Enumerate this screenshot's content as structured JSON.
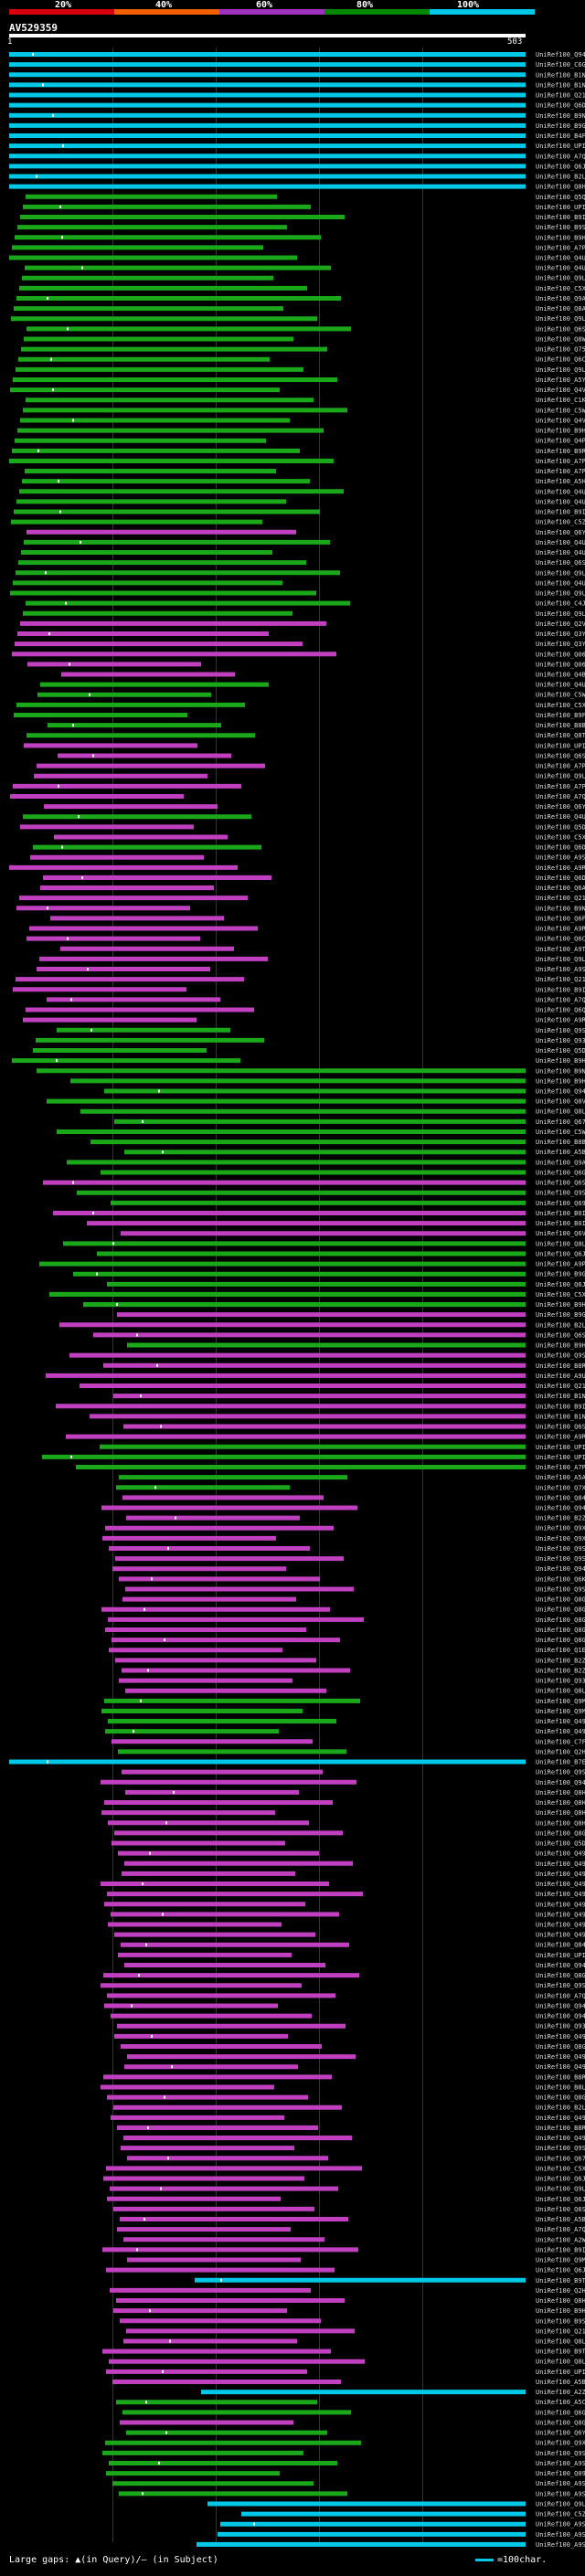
{
  "legend": {
    "percents": [
      "20%",
      "40%",
      "60%",
      "80%",
      "100%"
    ],
    "colors": [
      "#d8000c",
      "#f06000",
      "#a030c0",
      "#008800",
      "#00c8e6"
    ]
  },
  "query": {
    "id": "AV529359",
    "start": "1",
    "end": "503"
  },
  "hits": [
    {
      "id": "UniRef100_Q941L0",
      "color": "cyan"
    },
    {
      "id": "UniRef100_C6G908",
      "color": "cyan"
    },
    {
      "id": "UniRef100_B1NY19",
      "color": "cyan"
    },
    {
      "id": "UniRef100_B1NY16",
      "color": "cyan"
    },
    {
      "id": "UniRef100_Q21B40",
      "color": "cyan"
    },
    {
      "id": "UniRef100_Q6DU12",
      "color": "cyan"
    },
    {
      "id": "UniRef100_B9NMP9",
      "color": "cyan"
    },
    {
      "id": "UniRef100_B9GFE1",
      "color": "cyan"
    },
    {
      "id": "UniRef100_B4FUS7",
      "color": "cyan"
    },
    {
      "id": "UniRef100_UPI000...",
      "color": "cyan"
    },
    {
      "id": "UniRef100_A7QZN3",
      "color": "cyan"
    },
    {
      "id": "UniRef100_Q6JP46",
      "color": "cyan"
    },
    {
      "id": "UniRef100_B2LWM0",
      "color": "cyan"
    },
    {
      "id": "UniRef100_Q8H2Q6",
      "color": "cyan"
    },
    {
      "id": "UniRef100_Q5QEX6",
      "color": "green"
    },
    {
      "id": "UniRef100_UPI000...",
      "color": "green"
    },
    {
      "id": "UniRef100_B9I171",
      "color": "green"
    },
    {
      "id": "UniRef100_B9SUE6",
      "color": "green"
    },
    {
      "id": "UniRef100_B9HAW0",
      "color": "green"
    },
    {
      "id": "UniRef100_A7PWE3",
      "color": "green"
    },
    {
      "id": "UniRef100_Q4UXZ7",
      "color": "green"
    },
    {
      "id": "UniRef100_Q4UXZ5",
      "color": "green"
    },
    {
      "id": "UniRef100_Q9LL16",
      "color": "green"
    },
    {
      "id": "UniRef100_C5XSS3",
      "color": "green"
    },
    {
      "id": "UniRef100_Q9AVB8",
      "color": "green"
    },
    {
      "id": "UniRef100_Q8AZN6",
      "color": "green"
    },
    {
      "id": "UniRef100_Q9LLI1",
      "color": "green"
    },
    {
      "id": "UniRef100_Q6S353",
      "color": "green"
    },
    {
      "id": "UniRef100_Q8W4A3",
      "color": "green"
    },
    {
      "id": "UniRef100_Q75RZ1",
      "color": "green"
    },
    {
      "id": "UniRef100_Q6C354",
      "color": "green"
    },
    {
      "id": "UniRef100_Q9LL15",
      "color": "green"
    },
    {
      "id": "UniRef100_A5YJC4",
      "color": "green"
    },
    {
      "id": "UniRef100_Q4VWW6",
      "color": "green"
    },
    {
      "id": "UniRef100_C1KHI1",
      "color": "green"
    },
    {
      "id": "UniRef100_C5WA43",
      "color": "green"
    },
    {
      "id": "UniRef100_Q4VWW7",
      "color": "green"
    },
    {
      "id": "UniRef100_B9HN33",
      "color": "green"
    },
    {
      "id": "UniRef100_Q4PXB6",
      "color": "green"
    },
    {
      "id": "UniRef100_B9RP67",
      "color": "green"
    },
    {
      "id": "UniRef100_A7P11K",
      "color": "green"
    },
    {
      "id": "UniRef100_A7P5Q6",
      "color": "green"
    },
    {
      "id": "UniRef100_A5HY15",
      "color": "green"
    },
    {
      "id": "UniRef100_Q4U101",
      "color": "green"
    },
    {
      "id": "UniRef100_Q4U100",
      "color": "green"
    },
    {
      "id": "UniRef100_B9IKV7",
      "color": "green"
    },
    {
      "id": "UniRef100_C5Z153",
      "color": "green"
    },
    {
      "id": "UniRef100_Q6Y8V2",
      "color": "magenta"
    },
    {
      "id": "UniRef100_Q4UXZ9",
      "color": "green"
    },
    {
      "id": "UniRef100_Q4UXZ2",
      "color": "green"
    },
    {
      "id": "UniRef100_Q6S349",
      "color": "green"
    },
    {
      "id": "UniRef100_Q9LL18",
      "color": "green"
    },
    {
      "id": "UniRef100_Q4UXZ8",
      "color": "green"
    },
    {
      "id": "UniRef100_Q9LL14",
      "color": "green"
    },
    {
      "id": "UniRef100_C4J8X0",
      "color": "green"
    },
    {
      "id": "UniRef100_Q9LL19",
      "color": "green"
    },
    {
      "id": "UniRef100_Q2VCR3",
      "color": "magenta"
    },
    {
      "id": "UniRef100_Q3Y4F6",
      "color": "magenta"
    },
    {
      "id": "UniRef100_Q3Y4F5",
      "color": "magenta"
    },
    {
      "id": "UniRef100_Q06FC8",
      "color": "magenta"
    },
    {
      "id": "UniRef100_Q06FC7",
      "color": "magenta"
    },
    {
      "id": "UniRef100_Q4B946",
      "color": "magenta"
    },
    {
      "id": "UniRef100_Q4UXZ4",
      "color": "green"
    },
    {
      "id": "UniRef100_C5WT32",
      "color": "green"
    },
    {
      "id": "UniRef100_C5XWE0",
      "color": "green"
    },
    {
      "id": "UniRef100_B9F8G1",
      "color": "green"
    },
    {
      "id": "UniRef100_B8B512",
      "color": "green"
    },
    {
      "id": "UniRef100_Q8T1L6",
      "color": "green"
    },
    {
      "id": "UniRef100_UPI000...",
      "color": "magenta"
    },
    {
      "id": "UniRef100_Q6S352",
      "color": "magenta"
    },
    {
      "id": "UniRef100_A7PBV1",
      "color": "magenta"
    },
    {
      "id": "UniRef100_Q9LL12",
      "color": "magenta"
    },
    {
      "id": "UniRef100_A7PBT1",
      "color": "magenta"
    },
    {
      "id": "UniRef100_A7QPK7",
      "color": "magenta"
    },
    {
      "id": "UniRef100_Q6YVN9",
      "color": "magenta"
    },
    {
      "id": "UniRef100_Q4UXZ3",
      "color": "green"
    },
    {
      "id": "UniRef100_Q5D193",
      "color": "magenta"
    },
    {
      "id": "UniRef100_C5XZN9",
      "color": "magenta"
    },
    {
      "id": "UniRef100_Q6DUG6",
      "color": "green"
    },
    {
      "id": "UniRef100_A9SLY1",
      "color": "magenta"
    },
    {
      "id": "UniRef100_A9RUM4",
      "color": "magenta"
    },
    {
      "id": "UniRef100_Q6DUJ3",
      "color": "magenta"
    },
    {
      "id": "UniRef100_Q6AT26",
      "color": "magenta"
    },
    {
      "id": "UniRef100_Q21B39",
      "color": "magenta"
    },
    {
      "id": "UniRef100_B9N4S3",
      "color": "magenta"
    },
    {
      "id": "UniRef100_Q6FC9",
      "color": "magenta"
    },
    {
      "id": "UniRef100_A9RUN7",
      "color": "magenta"
    },
    {
      "id": "UniRef100_Q6C2C2",
      "color": "magenta"
    },
    {
      "id": "UniRef100_A9TE97",
      "color": "magenta"
    },
    {
      "id": "UniRef100_Q9LL13",
      "color": "magenta"
    },
    {
      "id": "UniRef100_A9SS08",
      "color": "magenta"
    },
    {
      "id": "UniRef100_Q21B38",
      "color": "magenta"
    },
    {
      "id": "UniRef100_B9I7Q4",
      "color": "magenta"
    },
    {
      "id": "UniRef100_A7Q795",
      "color": "magenta"
    },
    {
      "id": "UniRef100_Q6QP68",
      "color": "magenta"
    },
    {
      "id": "UniRef100_A9RGW5",
      "color": "magenta"
    },
    {
      "id": "UniRef100_Q9SKJ5",
      "color": "green"
    },
    {
      "id": "UniRef100_Q93XQ1",
      "color": "green"
    },
    {
      "id": "UniRef100_Q5D194",
      "color": "green"
    },
    {
      "id": "UniRef100_B9H6D0",
      "color": "green"
    },
    {
      "id": "UniRef100_B9NGC9",
      "color": "green"
    },
    {
      "id": "UniRef100_B9H5P9",
      "color": "green"
    },
    {
      "id": "UniRef100_Q94JQ6",
      "color": "green"
    },
    {
      "id": "UniRef100_Q8VYT1",
      "color": "green"
    },
    {
      "id": "UniRef100_Q8LI78",
      "color": "green"
    },
    {
      "id": "UniRef100_Q67BC7",
      "color": "green"
    },
    {
      "id": "UniRef100_C5WZC2",
      "color": "green"
    },
    {
      "id": "UniRef100_B8BHD7",
      "color": "green"
    },
    {
      "id": "UniRef100_A5BQN2",
      "color": "green"
    },
    {
      "id": "UniRef100_Q9AY71",
      "color": "green"
    },
    {
      "id": "UniRef100_Q6GFD1",
      "color": "green"
    },
    {
      "id": "UniRef100_Q6S988",
      "color": "magenta"
    },
    {
      "id": "UniRef100_Q9SEG1",
      "color": "green"
    },
    {
      "id": "UniRef100_Q69P51",
      "color": "green"
    },
    {
      "id": "UniRef100_B0I545",
      "color": "magenta"
    },
    {
      "id": "UniRef100_B0I542",
      "color": "magenta"
    },
    {
      "id": "UniRef100_Q6VP47",
      "color": "magenta"
    },
    {
      "id": "UniRef100_Q8L649",
      "color": "green"
    },
    {
      "id": "UniRef100_Q6J8X1",
      "color": "green"
    },
    {
      "id": "UniRef100_A9PGR8",
      "color": "green"
    },
    {
      "id": "UniRef100_B9GTH4",
      "color": "green"
    },
    {
      "id": "UniRef100_Q6J8X2",
      "color": "green"
    },
    {
      "id": "UniRef100_C5XCX3",
      "color": "green"
    },
    {
      "id": "UniRef100_B9H7U0",
      "color": "green"
    },
    {
      "id": "UniRef100_B9GRE7",
      "color": "magenta"
    },
    {
      "id": "UniRef100_B2LWM1",
      "color": "magenta"
    },
    {
      "id": "UniRef100_Q6SMG1",
      "color": "magenta"
    },
    {
      "id": "UniRef100_B9HB43",
      "color": "green"
    },
    {
      "id": "UniRef100_Q9SJZ2",
      "color": "magenta"
    },
    {
      "id": "UniRef100_B8RPP5",
      "color": "magenta"
    },
    {
      "id": "UniRef100_A9U2D4",
      "color": "magenta"
    },
    {
      "id": "UniRef100_Q21B42",
      "color": "magenta"
    },
    {
      "id": "UniRef100_B1NY10",
      "color": "magenta"
    },
    {
      "id": "UniRef100_B9I7B3",
      "color": "magenta"
    },
    {
      "id": "UniRef100_B1NY17",
      "color": "magenta"
    },
    {
      "id": "UniRef100_Q6S34C",
      "color": "magenta"
    },
    {
      "id": "UniRef100_A9R7F0",
      "color": "magenta"
    },
    {
      "id": "UniRef100_UPI000...",
      "color": "green"
    },
    {
      "id": "UniRef100_UPI000...",
      "color": "green"
    },
    {
      "id": "UniRef100_A7PFP0",
      "color": "green"
    },
    {
      "id": "UniRef100_A5AR58",
      "color": "green"
    },
    {
      "id": "UniRef100_Q7XH53",
      "color": "green"
    },
    {
      "id": "UniRef100_Q84JP5",
      "color": "magenta"
    },
    {
      "id": "UniRef100_Q94JP2",
      "color": "magenta"
    },
    {
      "id": "UniRef100_B2ZA59",
      "color": "magenta"
    },
    {
      "id": "UniRef100_Q9XFC6",
      "color": "magenta"
    },
    {
      "id": "UniRef100_Q9XFC5",
      "color": "magenta"
    },
    {
      "id": "UniRef100_Q9SYX5",
      "color": "magenta"
    },
    {
      "id": "UniRef100_Q9SY94",
      "color": "magenta"
    },
    {
      "id": "UniRef100_Q94JP3",
      "color": "magenta"
    },
    {
      "id": "UniRef100_Q6KW03",
      "color": "magenta"
    },
    {
      "id": "UniRef100_Q9SWX0",
      "color": "magenta"
    },
    {
      "id": "UniRef100_Q8GV67",
      "color": "magenta"
    },
    {
      "id": "UniRef100_Q8GV66",
      "color": "magenta"
    },
    {
      "id": "UniRef100_Q8GV65",
      "color": "magenta"
    },
    {
      "id": "UniRef100_Q8GV64",
      "color": "magenta"
    },
    {
      "id": "UniRef100_Q8GV63",
      "color": "magenta"
    },
    {
      "id": "UniRef100_Q1E093",
      "color": "magenta"
    },
    {
      "id": "UniRef100_B2ZA88",
      "color": "magenta"
    },
    {
      "id": "UniRef100_B2ZA87",
      "color": "magenta"
    },
    {
      "id": "UniRef100_Q93WC2",
      "color": "magenta"
    },
    {
      "id": "UniRef100_Q8LK26",
      "color": "magenta"
    },
    {
      "id": "UniRef100_Q9M693",
      "color": "green"
    },
    {
      "id": "UniRef100_Q9M692",
      "color": "green"
    },
    {
      "id": "UniRef100_Q49MA0",
      "color": "green"
    },
    {
      "id": "UniRef100_Q49M87",
      "color": "green"
    },
    {
      "id": "UniRef100_C7F8W4",
      "color": "magenta"
    },
    {
      "id": "UniRef100_Q2HPS1",
      "color": "green"
    },
    {
      "id": "UniRef100_B7EDF6",
      "color": "cyan"
    },
    {
      "id": "UniRef100_Q9SWK6",
      "color": "magenta"
    },
    {
      "id": "UniRef100_Q94JP6",
      "color": "magenta"
    },
    {
      "id": "UniRef100_Q8H7A0",
      "color": "magenta"
    },
    {
      "id": "UniRef100_Q8H736",
      "color": "magenta"
    },
    {
      "id": "UniRef100_Q8H734",
      "color": "magenta"
    },
    {
      "id": "UniRef100_Q8H733",
      "color": "magenta"
    },
    {
      "id": "UniRef100_Q8GV58",
      "color": "magenta"
    },
    {
      "id": "UniRef100_Q5D195",
      "color": "magenta"
    },
    {
      "id": "UniRef100_Q49M97",
      "color": "magenta"
    },
    {
      "id": "UniRef100_Q49M96",
      "color": "magenta"
    },
    {
      "id": "UniRef100_Q49M95",
      "color": "magenta"
    },
    {
      "id": "UniRef100_Q49M94",
      "color": "magenta"
    },
    {
      "id": "UniRef100_Q49M93",
      "color": "magenta"
    },
    {
      "id": "UniRef100_Q49M90",
      "color": "magenta"
    },
    {
      "id": "UniRef100_Q49M89",
      "color": "magenta"
    },
    {
      "id": "UniRef100_Q49M85",
      "color": "magenta"
    },
    {
      "id": "UniRef100_Q49M82",
      "color": "magenta"
    },
    {
      "id": "UniRef100_Q84JA6",
      "color": "magenta"
    },
    {
      "id": "UniRef100_UPI000...",
      "color": "magenta"
    },
    {
      "id": "UniRef100_Q94JP9",
      "color": "magenta"
    },
    {
      "id": "UniRef100_Q8GV66",
      "color": "magenta"
    },
    {
      "id": "UniRef100_Q9SYX5",
      "color": "magenta"
    },
    {
      "id": "UniRef100_A7Q1M3",
      "color": "magenta"
    },
    {
      "id": "UniRef100_Q94JP8",
      "color": "magenta"
    },
    {
      "id": "UniRef100_Q94JP4",
      "color": "magenta"
    },
    {
      "id": "UniRef100_Q93WC1",
      "color": "magenta"
    },
    {
      "id": "UniRef100_Q49M88",
      "color": "magenta"
    },
    {
      "id": "UniRef100_Q8GV61",
      "color": "magenta"
    },
    {
      "id": "UniRef100_Q49M92",
      "color": "magenta"
    },
    {
      "id": "UniRef100_Q49M91",
      "color": "magenta"
    },
    {
      "id": "UniRef100_B8RPP6",
      "color": "magenta"
    },
    {
      "id": "UniRef100_B8LKJ9",
      "color": "magenta"
    },
    {
      "id": "UniRef100_Q8GV62",
      "color": "magenta"
    },
    {
      "id": "UniRef100_B2LWM2",
      "color": "magenta"
    },
    {
      "id": "UniRef100_Q49M81",
      "color": "magenta"
    },
    {
      "id": "UniRef100_B8RPP4",
      "color": "magenta"
    },
    {
      "id": "UniRef100_Q49M98",
      "color": "magenta"
    },
    {
      "id": "UniRef100_Q9SWX0",
      "color": "magenta"
    },
    {
      "id": "UniRef100_Q67BC8",
      "color": "magenta"
    },
    {
      "id": "UniRef100_C5XKA4",
      "color": "magenta"
    },
    {
      "id": "UniRef100_Q6J8W9",
      "color": "magenta"
    },
    {
      "id": "UniRef100_Q9LWL9",
      "color": "magenta"
    },
    {
      "id": "UniRef100_Q6J8W8",
      "color": "magenta"
    },
    {
      "id": "UniRef100_Q6S351",
      "color": "magenta"
    },
    {
      "id": "UniRef100_A5BYP1",
      "color": "magenta"
    },
    {
      "id": "UniRef100_A7QDH4",
      "color": "magenta"
    },
    {
      "id": "UniRef100_A2WV32",
      "color": "magenta"
    },
    {
      "id": "UniRef100_B9I114",
      "color": "magenta"
    },
    {
      "id": "UniRef100_Q9M4U1",
      "color": "magenta"
    },
    {
      "id": "UniRef100_Q6J8X0",
      "color": "magenta"
    },
    {
      "id": "UniRef100_B9T514",
      "color": "cyan"
    },
    {
      "id": "UniRef100_Q2HPS2",
      "color": "magenta"
    },
    {
      "id": "UniRef100_Q8H733",
      "color": "magenta"
    },
    {
      "id": "UniRef100_B9H2F9",
      "color": "magenta"
    },
    {
      "id": "UniRef100_B9S8B9",
      "color": "magenta"
    },
    {
      "id": "UniRef100_Q21B43",
      "color": "magenta"
    },
    {
      "id": "UniRef100_Q8L368",
      "color": "magenta"
    },
    {
      "id": "UniRef100_B9T4Q9",
      "color": "magenta"
    },
    {
      "id": "UniRef100_Q8LW39",
      "color": "magenta"
    },
    {
      "id": "UniRef100_UPI000...",
      "color": "magenta"
    },
    {
      "id": "UniRef100_A5B6B8",
      "color": "magenta"
    },
    {
      "id": "UniRef100_A2ZZV0",
      "color": "cyan"
    },
    {
      "id": "UniRef100_A5C278",
      "color": "green"
    },
    {
      "id": "UniRef100_Q6GVM1",
      "color": "green"
    },
    {
      "id": "UniRef100_Q8GHU9",
      "color": "magenta"
    },
    {
      "id": "UniRef100_Q6YJ92",
      "color": "green"
    },
    {
      "id": "UniRef100_Q9XHT3",
      "color": "green"
    },
    {
      "id": "UniRef100_Q9SHT6",
      "color": "green"
    },
    {
      "id": "UniRef100_A9SDL9",
      "color": "green"
    },
    {
      "id": "UniRef100_Q09HT7",
      "color": "green"
    },
    {
      "id": "UniRef100_A9SS22",
      "color": "green"
    },
    {
      "id": "UniRef100_A9SV33",
      "color": "green"
    },
    {
      "id": "UniRef100_Q9LL17",
      "color": "cyan"
    },
    {
      "id": "UniRef100_C5Z346",
      "color": "cyan"
    },
    {
      "id": "UniRef100_A9SS21",
      "color": "cyan"
    },
    {
      "id": "UniRef100_A9SS35",
      "color": "cyan"
    },
    {
      "id": "UniRef100_A9SV34",
      "color": "cyan"
    }
  ],
  "footer": {
    "gaps_label": "Large gaps: ▲(in Query)/— (in Subject)",
    "scale_label": "=100char."
  }
}
